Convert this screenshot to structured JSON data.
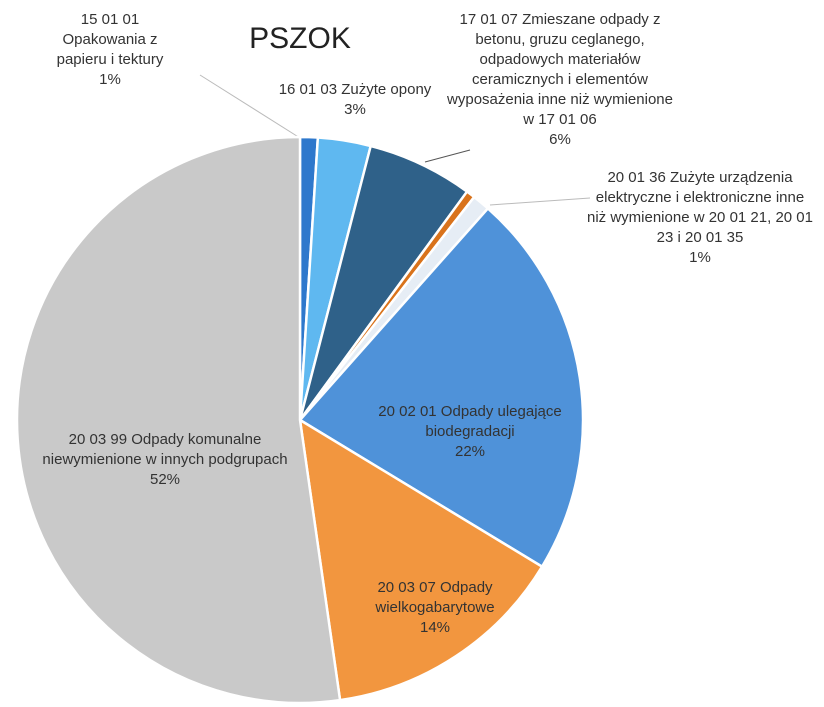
{
  "chart_data": {
    "type": "pie",
    "title": "PSZOK",
    "categories": [
      "15 01 01 Opakowania z papieru i tektury",
      "16 01 03 Zużyte opony",
      "17 01 07 Zmieszane odpady z betonu, gruzu ceglanego, odpadowych materiałów ceramicznych i elementów wyposażenia inne niż wymienione w 17 01 06",
      null,
      "20 01 36 Zużyte urządzenia elektryczne i elektroniczne inne niż wymienione w 20 01 21, 20 01 23 i 20 01 35",
      "20 02 01 Odpady ulegające biodegradacji",
      "20 03 07 Odpady wielkogabarytowe",
      "20 03 99 Odpady komunalne niewymienione w innych podgrupach"
    ],
    "values": [
      1,
      3,
      6,
      0.5,
      1,
      22,
      14,
      52
    ],
    "value_labels": [
      "1%",
      "3%",
      "6%",
      null,
      "1%",
      "22%",
      "14%",
      "52%"
    ],
    "colors": [
      "#2e78cc",
      "#5fb8f0",
      "#2f6189",
      "#d9731c",
      "#e6edf5",
      "#4f92d9",
      "#f2963f",
      "#c9c9c9"
    ]
  }
}
